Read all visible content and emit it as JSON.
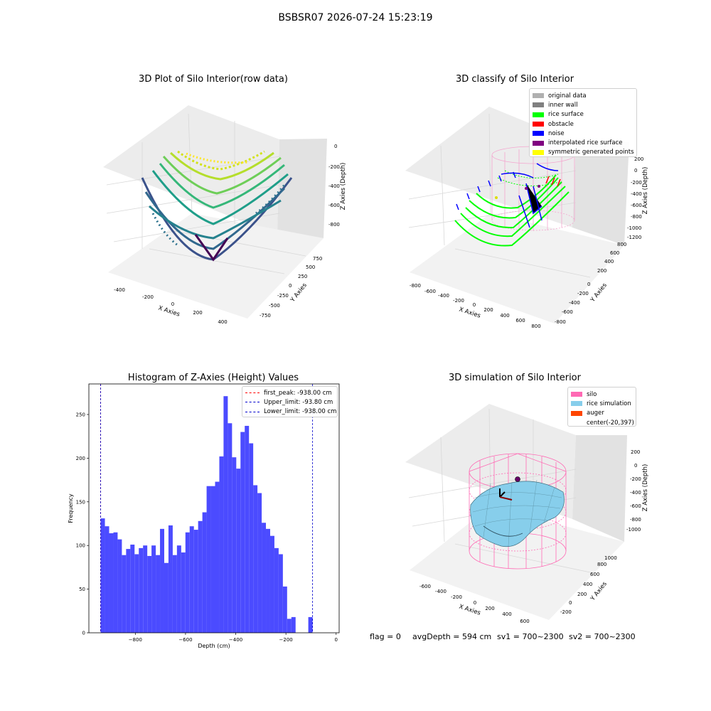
{
  "suptitle": "BSBSR07 2026-07-24 15:23:19",
  "colors": {
    "hist_bar": "#4b4bff",
    "first_peak": "#ff0000",
    "limit_lines": "#0000cc",
    "original_data": "#b0b0b0",
    "inner_wall": "#808080",
    "rice_surface": "#00ff00",
    "obstacle": "#ff0000",
    "noise": "#0000ff",
    "interpolated_rice_surface": "#800080",
    "symmetric_generated_points": "#ffff00",
    "silo": "#ff69b4",
    "rice_simulation": "#87ceeb",
    "auger": "#ff4500"
  },
  "chart_data": [
    {
      "type": "scatter",
      "subtype": "3d",
      "title": "3D Plot of Silo Interior(row data)",
      "xlabel": "X Axies",
      "ylabel": "Y Axies",
      "zlabel": "Z Axies (Depth)",
      "x_ticks": [
        "-400",
        "-200",
        "0",
        "200",
        "400"
      ],
      "y_ticks": [
        "-750",
        "-500",
        "-250",
        "0",
        "250",
        "500",
        "750"
      ],
      "z_ticks": [
        "0",
        "-200",
        "-400",
        "-600",
        "-800"
      ],
      "colormap": "viridis"
    },
    {
      "type": "scatter",
      "subtype": "3d",
      "title": "3D classify of Silo Interior",
      "xlabel": "X Axies",
      "ylabel": "Y Axies",
      "zlabel": "Z Axies (Depth)",
      "x_ticks": [
        "-800",
        "-600",
        "-400",
        "-200",
        "0",
        "200",
        "400",
        "600",
        "800"
      ],
      "y_ticks": [
        "-800",
        "-600",
        "-400",
        "-200",
        "0",
        "200",
        "400",
        "600",
        "800"
      ],
      "z_ticks": [
        "200",
        "0",
        "-200",
        "-400",
        "-600",
        "-800",
        "-1000",
        "-1200"
      ],
      "legend": [
        {
          "label": "original data",
          "color_key": "original_data"
        },
        {
          "label": "inner wall",
          "color_key": "inner_wall"
        },
        {
          "label": "rice surface",
          "color_key": "rice_surface"
        },
        {
          "label": "obstacle",
          "color_key": "obstacle"
        },
        {
          "label": "noise",
          "color_key": "noise"
        },
        {
          "label": "interpolated rice surface",
          "color_key": "interpolated_rice_surface"
        },
        {
          "label": "symmetric generated points",
          "color_key": "symmetric_generated_points"
        }
      ]
    },
    {
      "type": "bar",
      "subtype": "histogram",
      "title": "Histogram of Z-Axies (Height) Values",
      "xlabel": "Depth (cm)",
      "ylabel": "Frequency",
      "xlim": [
        -985,
        12
      ],
      "ylim": [
        0,
        285
      ],
      "x_ticks": [
        -800,
        -600,
        -400,
        -200,
        0
      ],
      "y_ticks": [
        0,
        50,
        100,
        150,
        200,
        250
      ],
      "bin_start": -938,
      "bin_width": 16.88,
      "values": [
        131,
        122,
        114,
        115,
        107,
        89,
        96,
        101,
        90,
        97,
        100,
        88,
        100,
        89,
        119,
        80,
        123,
        89,
        100,
        92,
        115,
        122,
        118,
        128,
        138,
        168,
        168,
        173,
        202,
        271,
        240,
        201,
        188,
        230,
        237,
        217,
        169,
        160,
        126,
        119,
        111,
        97,
        90,
        53,
        16,
        18,
        0,
        0,
        0,
        18
      ],
      "vlines": [
        {
          "label": "first_peak: -938.00 cm",
          "x": -938,
          "color_key": "first_peak"
        },
        {
          "label": "Upper_limit: -93.80 cm",
          "x": -93.8,
          "color_key": "limit_lines"
        },
        {
          "label": "Lower_limit: -938.00 cm",
          "x": -938,
          "color_key": "limit_lines"
        }
      ],
      "legend_position": "upper right",
      "grid": false
    },
    {
      "type": "scatter",
      "subtype": "3d-surface",
      "title": "3D simulation of Silo Interior",
      "xlabel": "X Axies",
      "ylabel": "Y Axies",
      "zlabel": "Z Axies (Depth)",
      "x_ticks": [
        "-600",
        "-400",
        "-200",
        "0",
        "200",
        "400",
        "600"
      ],
      "y_ticks": [
        "-200",
        "0",
        "200",
        "400",
        "600",
        "800",
        "1000"
      ],
      "z_ticks": [
        "200",
        "0",
        "-200",
        "-400",
        "-600",
        "-800",
        "-1000"
      ],
      "legend": [
        {
          "label": "silo",
          "color_key": "silo"
        },
        {
          "label": "rice simulation",
          "color_key": "rice_simulation"
        },
        {
          "label": "auger",
          "color_key": "auger"
        },
        {
          "label": "center(-20,397)",
          "color_key": null
        }
      ]
    }
  ],
  "footer": {
    "flag": "flag = 0",
    "avg_depth": "avgDepth = 594 cm",
    "sv1": "sv1 = 700~2300",
    "sv2": "sv2 = 700~2300"
  }
}
